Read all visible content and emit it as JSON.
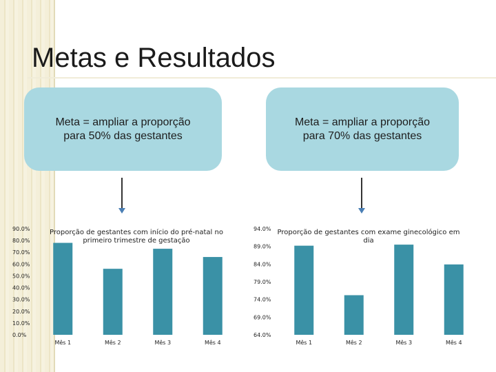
{
  "slide": {
    "title": "Metas e Resultados"
  },
  "goals": [
    {
      "text": "Meta = ampliar a proporção\npara 50% das gestantes"
    },
    {
      "text": "Meta = ampliar a proporção\npara 70% das gestantes"
    }
  ],
  "colors": {
    "bar": "#3a91a6",
    "goal_box": "#a9d8e1"
  },
  "chart_data": [
    {
      "type": "bar",
      "title": "Proporção de gestantes com início do pré-natal no primeiro trimestre de gestação",
      "title_lines": [
        "Proporção de gestantes com início do pré-natal no",
        "primeiro trimestre de gestação"
      ],
      "categories": [
        "Mês 1",
        "Mês 2",
        "Mês 3",
        "Mês 4"
      ],
      "values": [
        78.0,
        56.0,
        73.0,
        66.0
      ],
      "ylim": [
        0,
        90
      ],
      "yticks": [
        "90.0%",
        "80.0%",
        "70.0%",
        "60.0%",
        "50.0%",
        "40.0%",
        "30.0%",
        "20.0%",
        "10.0%",
        "0.0%"
      ],
      "tick_values": [
        90,
        80,
        70,
        60,
        50,
        40,
        30,
        20,
        10,
        0
      ],
      "xlabel": "",
      "ylabel": "",
      "grid": false,
      "legend": false
    },
    {
      "type": "bar",
      "title": "Proporção de gestantes com exame ginecológico em dia",
      "title_lines": [
        "Proporção de gestantes com exame ginecológico em",
        "dia"
      ],
      "categories": [
        "Mês 1",
        "Mês 2",
        "Mês 3",
        "Mês 4"
      ],
      "values": [
        89.2,
        75.2,
        89.5,
        83.9
      ],
      "ylim": [
        64,
        94
      ],
      "yticks": [
        "94.0%",
        "89.0%",
        "84.0%",
        "79.0%",
        "74.0%",
        "69.0%",
        "64.0%"
      ],
      "tick_values": [
        94,
        89,
        84,
        79,
        74,
        69,
        64
      ],
      "xlabel": "",
      "ylabel": "",
      "grid": false,
      "legend": false
    }
  ]
}
